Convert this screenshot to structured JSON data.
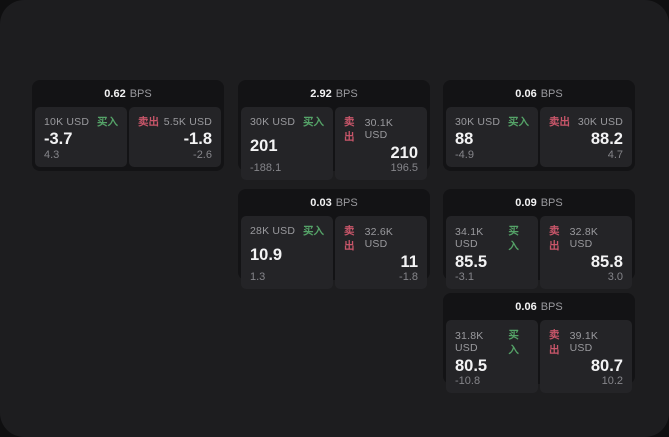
{
  "ui": {
    "bps_unit": "BPS",
    "buy_label": "买入",
    "sell_label": "卖出"
  },
  "colors": {
    "panel_bg": "#1d1d1f",
    "card_bg": "#131315",
    "tile_bg": "#242427",
    "buy_green": "#55a368",
    "sell_red": "#c9566a",
    "value_white": "#f3f3f4",
    "muted_gray": "#9a9a9e",
    "dim_gray": "#85858a"
  },
  "cards": [
    {
      "bps": "0.62",
      "buy": {
        "size": "10K USD",
        "value": "-3.7",
        "change": "4.3"
      },
      "sell": {
        "size": "5.5K USD",
        "value": "-1.8",
        "change": "-2.6"
      }
    },
    {
      "bps": "2.92",
      "buy": {
        "size": "30K USD",
        "value": "201",
        "change": "-188.1"
      },
      "sell": {
        "size": "30.1K USD",
        "value": "210",
        "change": "196.5"
      }
    },
    {
      "bps": "0.06",
      "buy": {
        "size": "30K USD",
        "value": "88",
        "change": "-4.9"
      },
      "sell": {
        "size": "30K USD",
        "value": "88.2",
        "change": "4.7"
      }
    },
    {
      "bps": "0.03",
      "buy": {
        "size": "28K USD",
        "value": "10.9",
        "change": "1.3"
      },
      "sell": {
        "size": "32.6K USD",
        "value": "11",
        "change": "-1.8"
      }
    },
    {
      "bps": "0.09",
      "buy": {
        "size": "34.1K USD",
        "value": "85.5",
        "change": "-3.1"
      },
      "sell": {
        "size": "32.8K USD",
        "value": "85.8",
        "change": "3.0"
      }
    },
    {
      "bps": "0.06",
      "buy": {
        "size": "31.8K USD",
        "value": "80.5",
        "change": "-10.8"
      },
      "sell": {
        "size": "39.1K USD",
        "value": "80.7",
        "change": "10.2"
      }
    }
  ]
}
